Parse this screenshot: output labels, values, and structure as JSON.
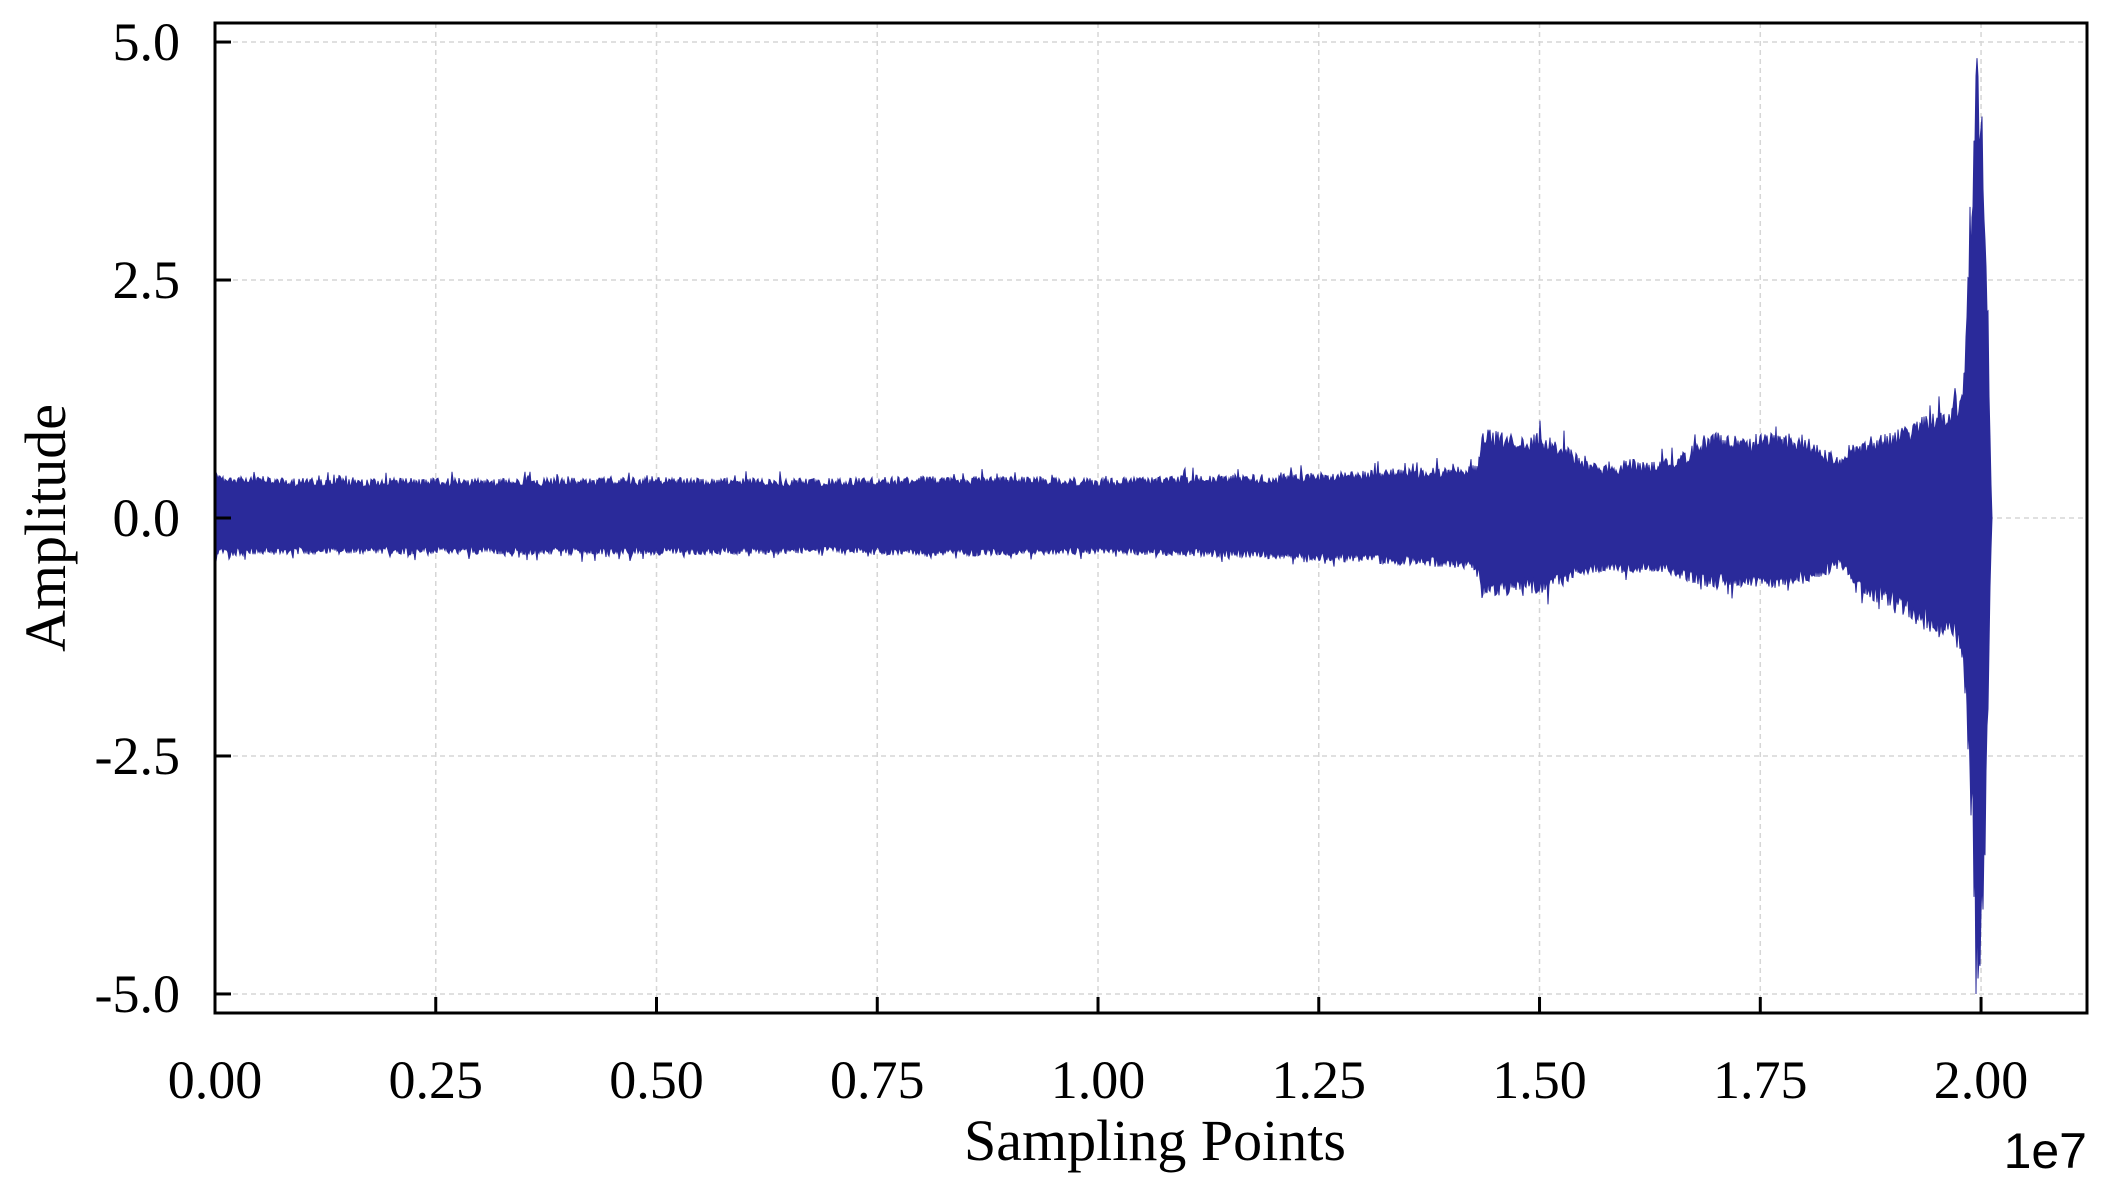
{
  "chart_data": {
    "type": "line",
    "xlabel": "Sampling Points",
    "ylabel": "Amplitude",
    "x_exponent_label": "1e7",
    "xlim": [
      0,
      21200000
    ],
    "ylim": [
      -5.2,
      5.2
    ],
    "xticks": [
      0,
      2500000,
      5000000,
      7500000,
      10000000,
      12500000,
      15000000,
      17500000,
      20000000
    ],
    "xtick_labels": [
      "0.00",
      "0.25",
      "0.50",
      "0.75",
      "1.00",
      "1.25",
      "1.50",
      "1.75",
      "2.00"
    ],
    "yticks": [
      5.0,
      2.5,
      0.0,
      -2.5,
      -5.0
    ],
    "ytick_labels": [
      "5.0",
      "2.5",
      "0.0",
      "-2.5",
      "-5.0"
    ],
    "grid": true,
    "series": [
      {
        "color": "#2a2a9a",
        "envelope": {
          "x": [
            0,
            50000,
            1000000,
            2000000,
            3000000,
            4000000,
            5000000,
            6000000,
            7000000,
            8000000,
            9000000,
            10000000,
            11000000,
            12000000,
            12500000,
            13000000,
            13500000,
            14000000,
            14300000,
            14350000,
            14500000,
            14800000,
            15000000,
            15300000,
            15500000,
            15800000,
            16000000,
            16300000,
            16600000,
            17000000,
            17300000,
            17600000,
            18000000,
            18300000,
            18400000,
            18700000,
            19000000,
            19300000,
            19600000,
            19800000,
            19900000,
            19950000,
            20000000,
            20050000,
            20100000,
            20120000
          ],
          "upper": [
            0.6,
            0.45,
            0.42,
            0.42,
            0.42,
            0.43,
            0.43,
            0.42,
            0.42,
            0.44,
            0.44,
            0.42,
            0.45,
            0.46,
            0.48,
            0.5,
            0.52,
            0.55,
            0.56,
            0.95,
            0.92,
            0.85,
            0.9,
            0.78,
            0.6,
            0.55,
            0.62,
            0.6,
            0.7,
            0.9,
            0.85,
            0.9,
            0.88,
            0.7,
            0.62,
            0.85,
            0.9,
            1.05,
            1.2,
            1.4,
            3.6,
            5.0,
            5.0,
            3.5,
            1.0,
            0.0
          ],
          "lower": [
            -0.5,
            -0.4,
            -0.38,
            -0.38,
            -0.38,
            -0.39,
            -0.39,
            -0.38,
            -0.38,
            -0.4,
            -0.4,
            -0.38,
            -0.4,
            -0.43,
            -0.45,
            -0.47,
            -0.5,
            -0.52,
            -0.55,
            -0.85,
            -0.82,
            -0.78,
            -0.8,
            -0.72,
            -0.6,
            -0.55,
            -0.6,
            -0.58,
            -0.65,
            -0.75,
            -0.72,
            -0.75,
            -0.7,
            -0.58,
            -0.52,
            -0.85,
            -0.95,
            -1.15,
            -1.3,
            -1.5,
            -3.4,
            -5.0,
            -5.0,
            -3.6,
            -1.0,
            0.0
          ]
        }
      }
    ]
  }
}
